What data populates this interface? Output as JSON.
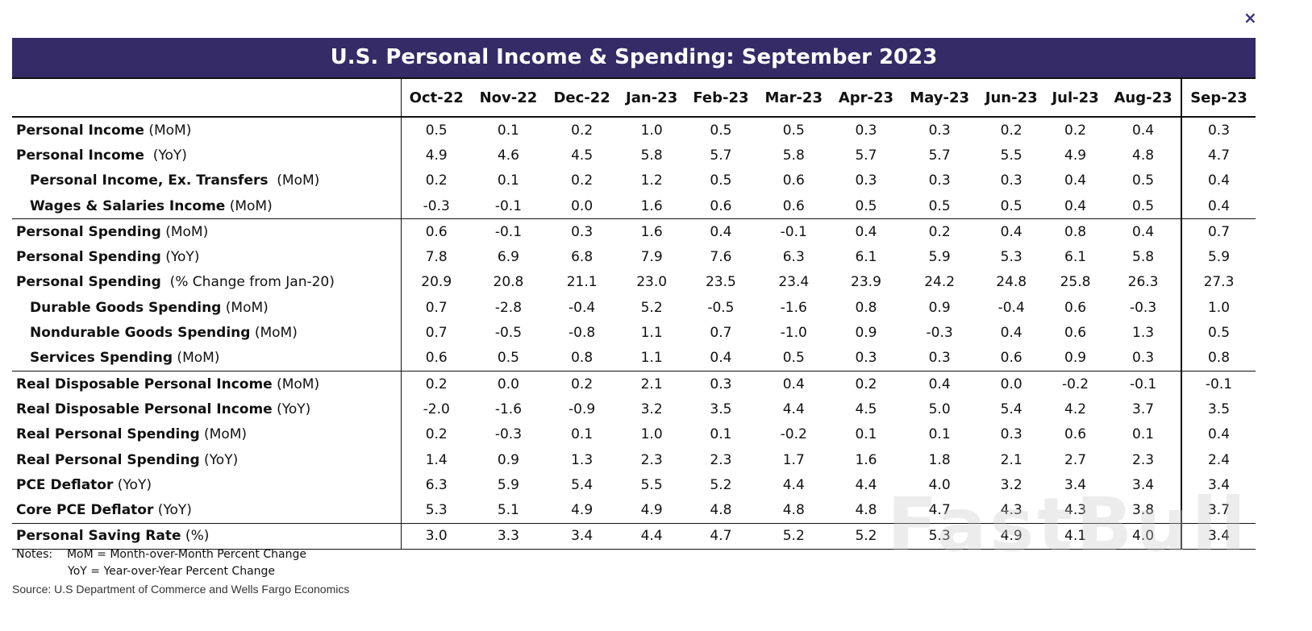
{
  "close_icon": "×",
  "title": "U.S. Personal Income & Spending: September 2023",
  "columns": [
    "Oct-22",
    "Nov-22",
    "Dec-22",
    "Jan-23",
    "Feb-23",
    "Mar-23",
    "Apr-23",
    "May-23",
    "Jun-23",
    "Jul-23",
    "Aug-23",
    "Sep-23"
  ],
  "rows": [
    {
      "bold": "Personal Income",
      "suffix": " (MoM)",
      "indent": false,
      "sep": false,
      "values": [
        "0.5",
        "0.1",
        "0.2",
        "1.0",
        "0.5",
        "0.5",
        "0.3",
        "0.3",
        "0.2",
        "0.2",
        "0.4",
        "0.3"
      ]
    },
    {
      "bold": "Personal Income",
      "suffix": "  (YoY)",
      "indent": false,
      "sep": false,
      "values": [
        "4.9",
        "4.6",
        "4.5",
        "5.8",
        "5.7",
        "5.8",
        "5.7",
        "5.7",
        "5.5",
        "4.9",
        "4.8",
        "4.7"
      ]
    },
    {
      "bold": "Personal Income, Ex. Transfers",
      "suffix": "  (MoM)",
      "indent": true,
      "sep": false,
      "values": [
        "0.2",
        "0.1",
        "0.2",
        "1.2",
        "0.5",
        "0.6",
        "0.3",
        "0.3",
        "0.3",
        "0.4",
        "0.5",
        "0.4"
      ]
    },
    {
      "bold": "Wages & Salaries Income",
      "suffix": " (MoM)",
      "indent": true,
      "sep": true,
      "values": [
        "-0.3",
        "-0.1",
        "0.0",
        "1.6",
        "0.6",
        "0.6",
        "0.5",
        "0.5",
        "0.5",
        "0.4",
        "0.5",
        "0.4"
      ]
    },
    {
      "bold": "Personal Spending",
      "suffix": " (MoM)",
      "indent": false,
      "sep": false,
      "values": [
        "0.6",
        "-0.1",
        "0.3",
        "1.6",
        "0.4",
        "-0.1",
        "0.4",
        "0.2",
        "0.4",
        "0.8",
        "0.4",
        "0.7"
      ]
    },
    {
      "bold": "Personal Spending",
      "suffix": " (YoY)",
      "indent": false,
      "sep": false,
      "values": [
        "7.8",
        "6.9",
        "6.8",
        "7.9",
        "7.6",
        "6.3",
        "6.1",
        "5.9",
        "5.3",
        "6.1",
        "5.8",
        "5.9"
      ]
    },
    {
      "bold": "Personal Spending",
      "suffix": "  (% Change from Jan-20)",
      "indent": false,
      "sep": false,
      "values": [
        "20.9",
        "20.8",
        "21.1",
        "23.0",
        "23.5",
        "23.4",
        "23.9",
        "24.2",
        "24.8",
        "25.8",
        "26.3",
        "27.3"
      ]
    },
    {
      "bold": "Durable Goods Spending",
      "suffix": " (MoM)",
      "indent": true,
      "sep": false,
      "values": [
        "0.7",
        "-2.8",
        "-0.4",
        "5.2",
        "-0.5",
        "-1.6",
        "0.8",
        "0.9",
        "-0.4",
        "0.6",
        "-0.3",
        "1.0"
      ]
    },
    {
      "bold": "Nondurable Goods Spending",
      "suffix": " (MoM)",
      "indent": true,
      "sep": false,
      "values": [
        "0.7",
        "-0.5",
        "-0.8",
        "1.1",
        "0.7",
        "-1.0",
        "0.9",
        "-0.3",
        "0.4",
        "0.6",
        "1.3",
        "0.5"
      ]
    },
    {
      "bold": "Services Spending",
      "suffix": " (MoM)",
      "indent": true,
      "sep": true,
      "values": [
        "0.6",
        "0.5",
        "0.8",
        "1.1",
        "0.4",
        "0.5",
        "0.3",
        "0.3",
        "0.6",
        "0.9",
        "0.3",
        "0.8"
      ]
    },
    {
      "bold": "Real Disposable Personal Income",
      "suffix": " (MoM)",
      "indent": false,
      "sep": false,
      "values": [
        "0.2",
        "0.0",
        "0.2",
        "2.1",
        "0.3",
        "0.4",
        "0.2",
        "0.4",
        "0.0",
        "-0.2",
        "-0.1",
        "-0.1"
      ]
    },
    {
      "bold": "Real Disposable Personal Income",
      "suffix": " (YoY)",
      "indent": false,
      "sep": false,
      "values": [
        "-2.0",
        "-1.6",
        "-0.9",
        "3.2",
        "3.5",
        "4.4",
        "4.5",
        "5.0",
        "5.4",
        "4.2",
        "3.7",
        "3.5"
      ]
    },
    {
      "bold": "Real Personal Spending",
      "suffix": " (MoM)",
      "indent": false,
      "sep": false,
      "values": [
        "0.2",
        "-0.3",
        "0.1",
        "1.0",
        "0.1",
        "-0.2",
        "0.1",
        "0.1",
        "0.3",
        "0.6",
        "0.1",
        "0.4"
      ]
    },
    {
      "bold": "Real Personal Spending",
      "suffix": " (YoY)",
      "indent": false,
      "sep": false,
      "values": [
        "1.4",
        "0.9",
        "1.3",
        "2.3",
        "2.3",
        "1.7",
        "1.6",
        "1.8",
        "2.1",
        "2.7",
        "2.3",
        "2.4"
      ]
    },
    {
      "bold": "PCE Deflator",
      "suffix": " (YoY)",
      "indent": false,
      "sep": false,
      "values": [
        "6.3",
        "5.9",
        "5.4",
        "5.5",
        "5.2",
        "4.4",
        "4.4",
        "4.0",
        "3.2",
        "3.4",
        "3.4",
        "3.4"
      ]
    },
    {
      "bold": "Core PCE Deflator",
      "suffix": " (YoY)",
      "indent": false,
      "sep": true,
      "values": [
        "5.3",
        "5.1",
        "4.9",
        "4.9",
        "4.8",
        "4.8",
        "4.8",
        "4.7",
        "4.3",
        "4.3",
        "3.8",
        "3.7"
      ]
    },
    {
      "bold": "Personal Saving Rate",
      "suffix": " (%)",
      "indent": false,
      "sep": true,
      "values": [
        "3.0",
        "3.3",
        "3.4",
        "4.4",
        "4.7",
        "5.2",
        "5.2",
        "5.3",
        "4.9",
        "4.1",
        "4.0",
        "3.4"
      ]
    }
  ],
  "notes": {
    "label": "Notes:",
    "line1": "MoM = Month-over-Month Percent Change",
    "line2": "YoY = Year-over-Year Percent Change"
  },
  "source": "Source: U.S Department of Commerce and Wells Fargo Economics",
  "watermark": "FastBull",
  "colors": {
    "banner": "#352b66",
    "close": "#3b3580"
  }
}
